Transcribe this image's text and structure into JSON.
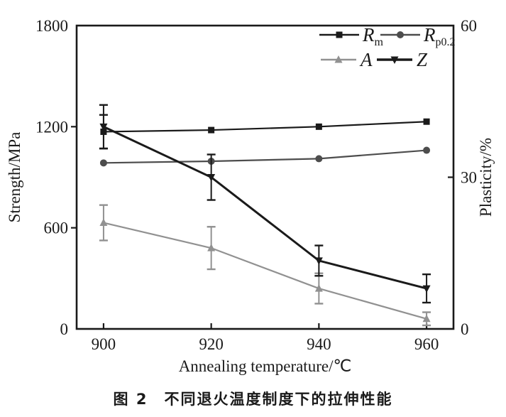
{
  "figure": {
    "caption": "图 2　不同退火温度制度下的拉伸性能"
  },
  "chart_data": {
    "type": "line",
    "x": [
      900,
      920,
      940,
      960
    ],
    "xlabel": "Annealing temperature/℃",
    "ylabel_left": "Strength/MPa",
    "ylabel_right": "Plasticity/%",
    "ylim_left": [
      0,
      1800
    ],
    "yticks_left": [
      0,
      600,
      1200,
      1800
    ],
    "ylim_right": [
      0,
      60
    ],
    "yticks_right": [
      0,
      30,
      60
    ],
    "xlim": [
      895,
      965
    ],
    "grid": false,
    "legend_position": "top-right-inside",
    "axis_color": "#1a1a1a",
    "series": [
      {
        "name": "Rm",
        "label_base": "R",
        "label_sub": "m",
        "axis": "left",
        "unit": "MPa",
        "marker": "square",
        "color": "#1a1a1a",
        "line_width": 2.2,
        "values": [
          1170,
          1180,
          1200,
          1230
        ],
        "errors": [
          100,
          0,
          0,
          0
        ]
      },
      {
        "name": "Rp0.2",
        "label_base": "R",
        "label_sub": "p0.2",
        "axis": "left",
        "unit": "MPa",
        "marker": "circle",
        "color": "#4d4d4d",
        "line_width": 2.2,
        "values": [
          985,
          995,
          1010,
          1060
        ],
        "errors": [
          0,
          0,
          0,
          0
        ]
      },
      {
        "name": "A",
        "label_base": "A",
        "label_sub": "",
        "axis": "right",
        "unit": "%",
        "marker": "triangle-up",
        "color": "#919191",
        "line_width": 2.2,
        "values": [
          21,
          16,
          8,
          2
        ],
        "errors": [
          3.5,
          4.2,
          3.0,
          1.3
        ]
      },
      {
        "name": "Z",
        "label_base": "Z",
        "label_sub": "",
        "axis": "right",
        "unit": "%",
        "marker": "triangle-down",
        "color": "#1a1a1a",
        "line_width": 3.0,
        "values": [
          40,
          30,
          13.5,
          8
        ],
        "errors": [
          4.3,
          4.5,
          3.0,
          2.8
        ]
      }
    ]
  }
}
